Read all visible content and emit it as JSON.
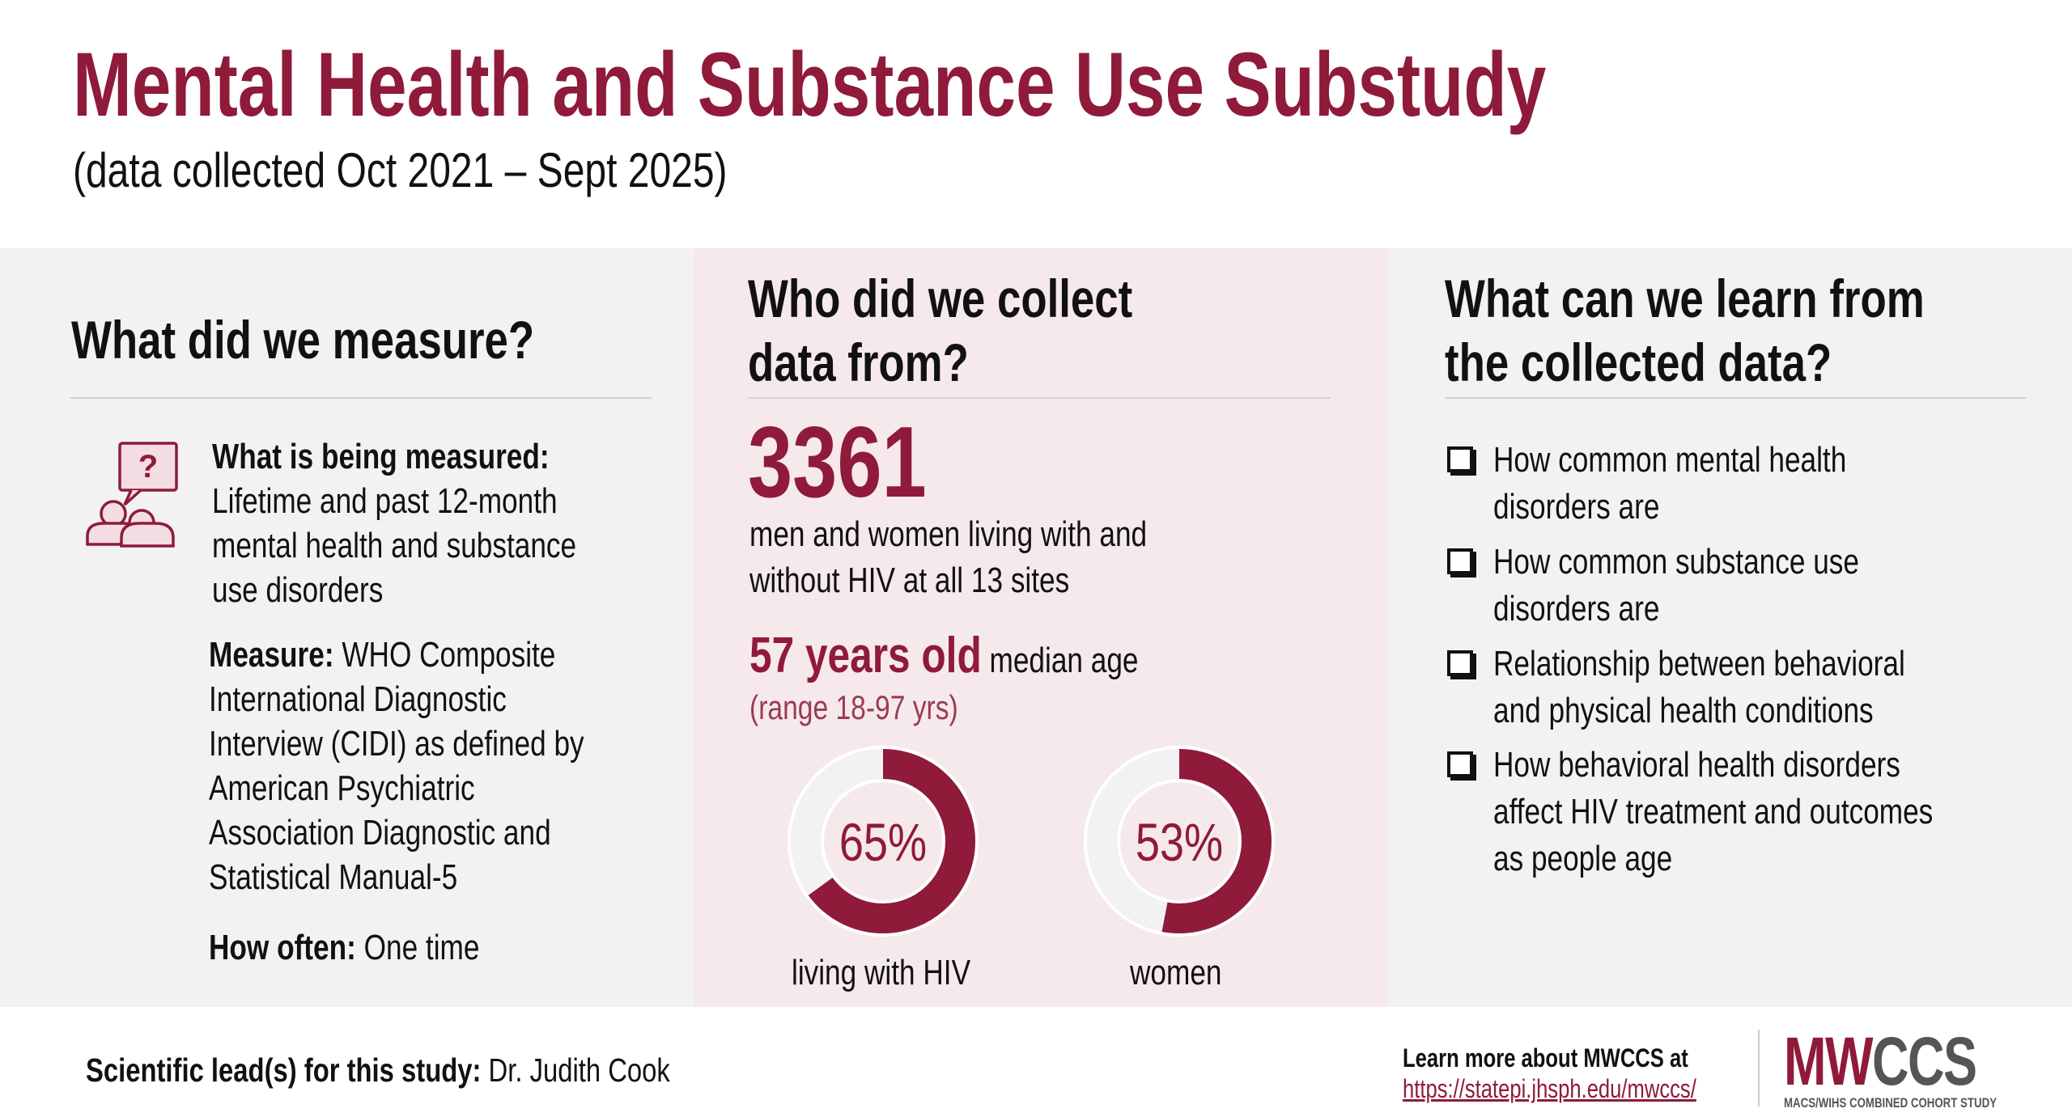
{
  "header": {
    "title": "Mental Health and Substance Use Substudy",
    "subtitle": "(data collected Oct 2021 – Sept 2025)"
  },
  "colors": {
    "accent": "#8f1a3a",
    "left_panel": "#f2f2f2",
    "middle_panel": "#f5e9ec",
    "right_panel": "#f2f2f2",
    "donut_track": "#f2f2f2"
  },
  "measure": {
    "heading": "What did we measure?",
    "icon": "people-question-bubble-icon",
    "what_label": "What is being measured:",
    "what_lines": [
      "Lifetime and past 12-month",
      "mental health and substance",
      "use disorders"
    ],
    "measure_label": "Measure:",
    "measure_lines": [
      " WHO Composite",
      "International Diagnostic",
      "Interview (CIDI) as defined by",
      "American Psychiatric",
      "Association Diagnostic and",
      "Statistical Manual-5"
    ],
    "often_label": "How often:",
    "often_value": " One time"
  },
  "who": {
    "heading_lines": [
      "Who did we collect",
      "data from?"
    ],
    "count": "3361",
    "count_lines": [
      "men and women living with and",
      "without HIV at all 13 sites"
    ],
    "age": "57 years old",
    "age_label": " median age",
    "range": "(range 18-97 yrs)",
    "donuts": [
      {
        "value": 65,
        "label_text": "65%",
        "caption": "living with HIV"
      },
      {
        "value": 53,
        "label_text": "53%",
        "caption": "women"
      }
    ]
  },
  "learn": {
    "heading_lines": [
      "What can we learn from",
      "the collected data?"
    ],
    "items": [
      [
        "How common mental health",
        "disorders are"
      ],
      [
        "How common substance use",
        "disorders are"
      ],
      [
        "Relationship between behavioral",
        "and physical health conditions"
      ],
      [
        "How behavioral health disorders",
        "affect HIV treatment and outcomes",
        "as people age"
      ]
    ]
  },
  "footer": {
    "lead_label": "Scientific lead(s) for this study:",
    "lead_value": " Dr. Judith Cook",
    "learn_more": "Learn more about MWCCS at",
    "url": "https://statepi.jhsph.edu/mwccs/",
    "logo_mw": "MW",
    "logo_ccs": "CCS",
    "logo_sub": "MACS/WIHS COMBINED COHORT STUDY"
  }
}
